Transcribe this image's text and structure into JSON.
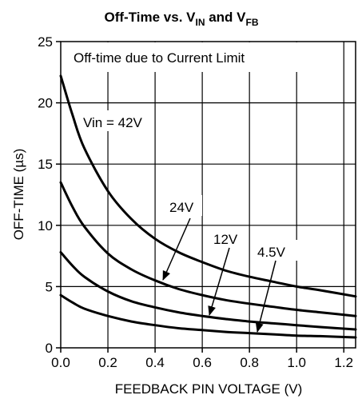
{
  "chart_data": {
    "type": "line",
    "title": {
      "main": "Off-Time vs. V",
      "sub1": "IN",
      "mid": " and V",
      "sub2": "FB"
    },
    "xlabel": "FEEDBACK PIN VOLTAGE (V)",
    "ylabel": "OFF-TIME (µs)",
    "xlim": [
      0,
      1.25
    ],
    "ylim": [
      0,
      25
    ],
    "xticks": [
      0.0,
      0.2,
      0.4,
      0.6,
      0.8,
      1.0,
      1.2
    ],
    "xtick_labels": [
      "0.0",
      "0.2",
      "0.4",
      "0.6",
      "0.8",
      "1.0",
      "1.2"
    ],
    "yticks": [
      0,
      5,
      10,
      15,
      20,
      25
    ],
    "ytick_labels": [
      "0",
      "5",
      "10",
      "15",
      "20",
      "25"
    ],
    "grid": true,
    "series": [
      {
        "name": "Vin = 42V",
        "x": [
          0.0,
          0.05,
          0.1,
          0.2,
          0.3,
          0.4,
          0.5,
          0.6,
          0.7,
          0.8,
          0.9,
          1.0,
          1.1,
          1.25
        ],
        "y": [
          22.2,
          19.0,
          16.3,
          12.8,
          10.5,
          8.9,
          7.8,
          7.0,
          6.3,
          5.8,
          5.4,
          5.0,
          4.7,
          4.2
        ]
      },
      {
        "name": "24V",
        "x": [
          0.0,
          0.05,
          0.1,
          0.2,
          0.3,
          0.4,
          0.5,
          0.6,
          0.7,
          0.8,
          0.9,
          1.0,
          1.1,
          1.25
        ],
        "y": [
          13.5,
          11.5,
          9.9,
          7.7,
          6.4,
          5.5,
          4.8,
          4.3,
          3.9,
          3.6,
          3.35,
          3.1,
          2.9,
          2.6
        ]
      },
      {
        "name": "12V",
        "x": [
          0.0,
          0.05,
          0.1,
          0.2,
          0.3,
          0.4,
          0.5,
          0.6,
          0.7,
          0.8,
          0.9,
          1.0,
          1.1,
          1.25
        ],
        "y": [
          7.8,
          6.7,
          5.8,
          4.6,
          3.8,
          3.3,
          2.9,
          2.6,
          2.35,
          2.15,
          2.0,
          1.85,
          1.7,
          1.5
        ]
      },
      {
        "name": "4.5V",
        "x": [
          0.0,
          0.05,
          0.1,
          0.2,
          0.3,
          0.4,
          0.5,
          0.6,
          0.7,
          0.8,
          0.9,
          1.0,
          1.1,
          1.25
        ],
        "y": [
          4.3,
          3.7,
          3.2,
          2.6,
          2.15,
          1.85,
          1.6,
          1.45,
          1.3,
          1.2,
          1.1,
          1.0,
          0.95,
          0.85
        ]
      }
    ],
    "annotations": [
      {
        "text": "Off-time due to Current Limit"
      },
      {
        "text": "Vin = 42V"
      },
      {
        "text": "24V"
      },
      {
        "text": "12V"
      },
      {
        "text": "4.5V"
      }
    ]
  }
}
